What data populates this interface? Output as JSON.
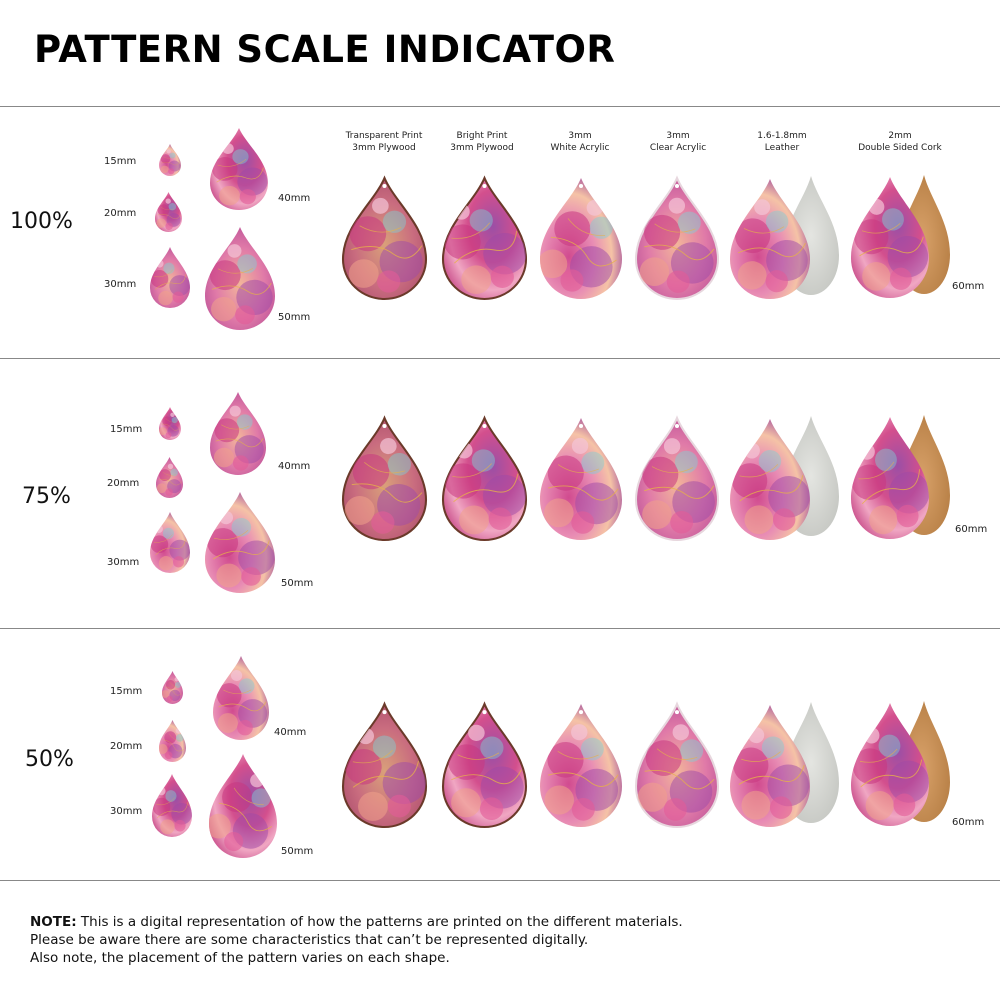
{
  "title": "PATTERN SCALE INDICATOR",
  "materials": [
    {
      "line1": "Transparent Print",
      "line2": "3mm Plywood"
    },
    {
      "line1": "Bright Print",
      "line2": "3mm Plywood"
    },
    {
      "line1": "3mm",
      "line2": "White Acrylic"
    },
    {
      "line1": "3mm",
      "line2": "Clear Acrylic"
    },
    {
      "line1": "1.6-1.8mm",
      "line2": "Leather"
    },
    {
      "line1": "2mm",
      "line2": "Double Sided Cork"
    }
  ],
  "sizes": {
    "s15": "15mm",
    "s20": "20mm",
    "s30": "30mm",
    "s40": "40mm",
    "s50": "50mm",
    "s60": "60mm"
  },
  "sections": [
    {
      "scale": "100%"
    },
    {
      "scale": "75%"
    },
    {
      "scale": "50%"
    }
  ],
  "colors": {
    "magenta": "#c0397e",
    "pink": "#e58bb5",
    "purple": "#9b4fa6",
    "peach": "#f2b59a",
    "aqua": "#7fd0d4",
    "leather_back": "#c9cbc6",
    "cork_back": "#c98f52",
    "wood_edge": "#6b3a2a"
  },
  "note": {
    "bold": "NOTE:",
    "line1": "This is a digital representation of how the patterns are printed on the different materials.",
    "line2": "Please be aware there are some characteristics that can’t be represented digitally.",
    "line3": "Also note, the placement of the pattern varies on each shape."
  }
}
